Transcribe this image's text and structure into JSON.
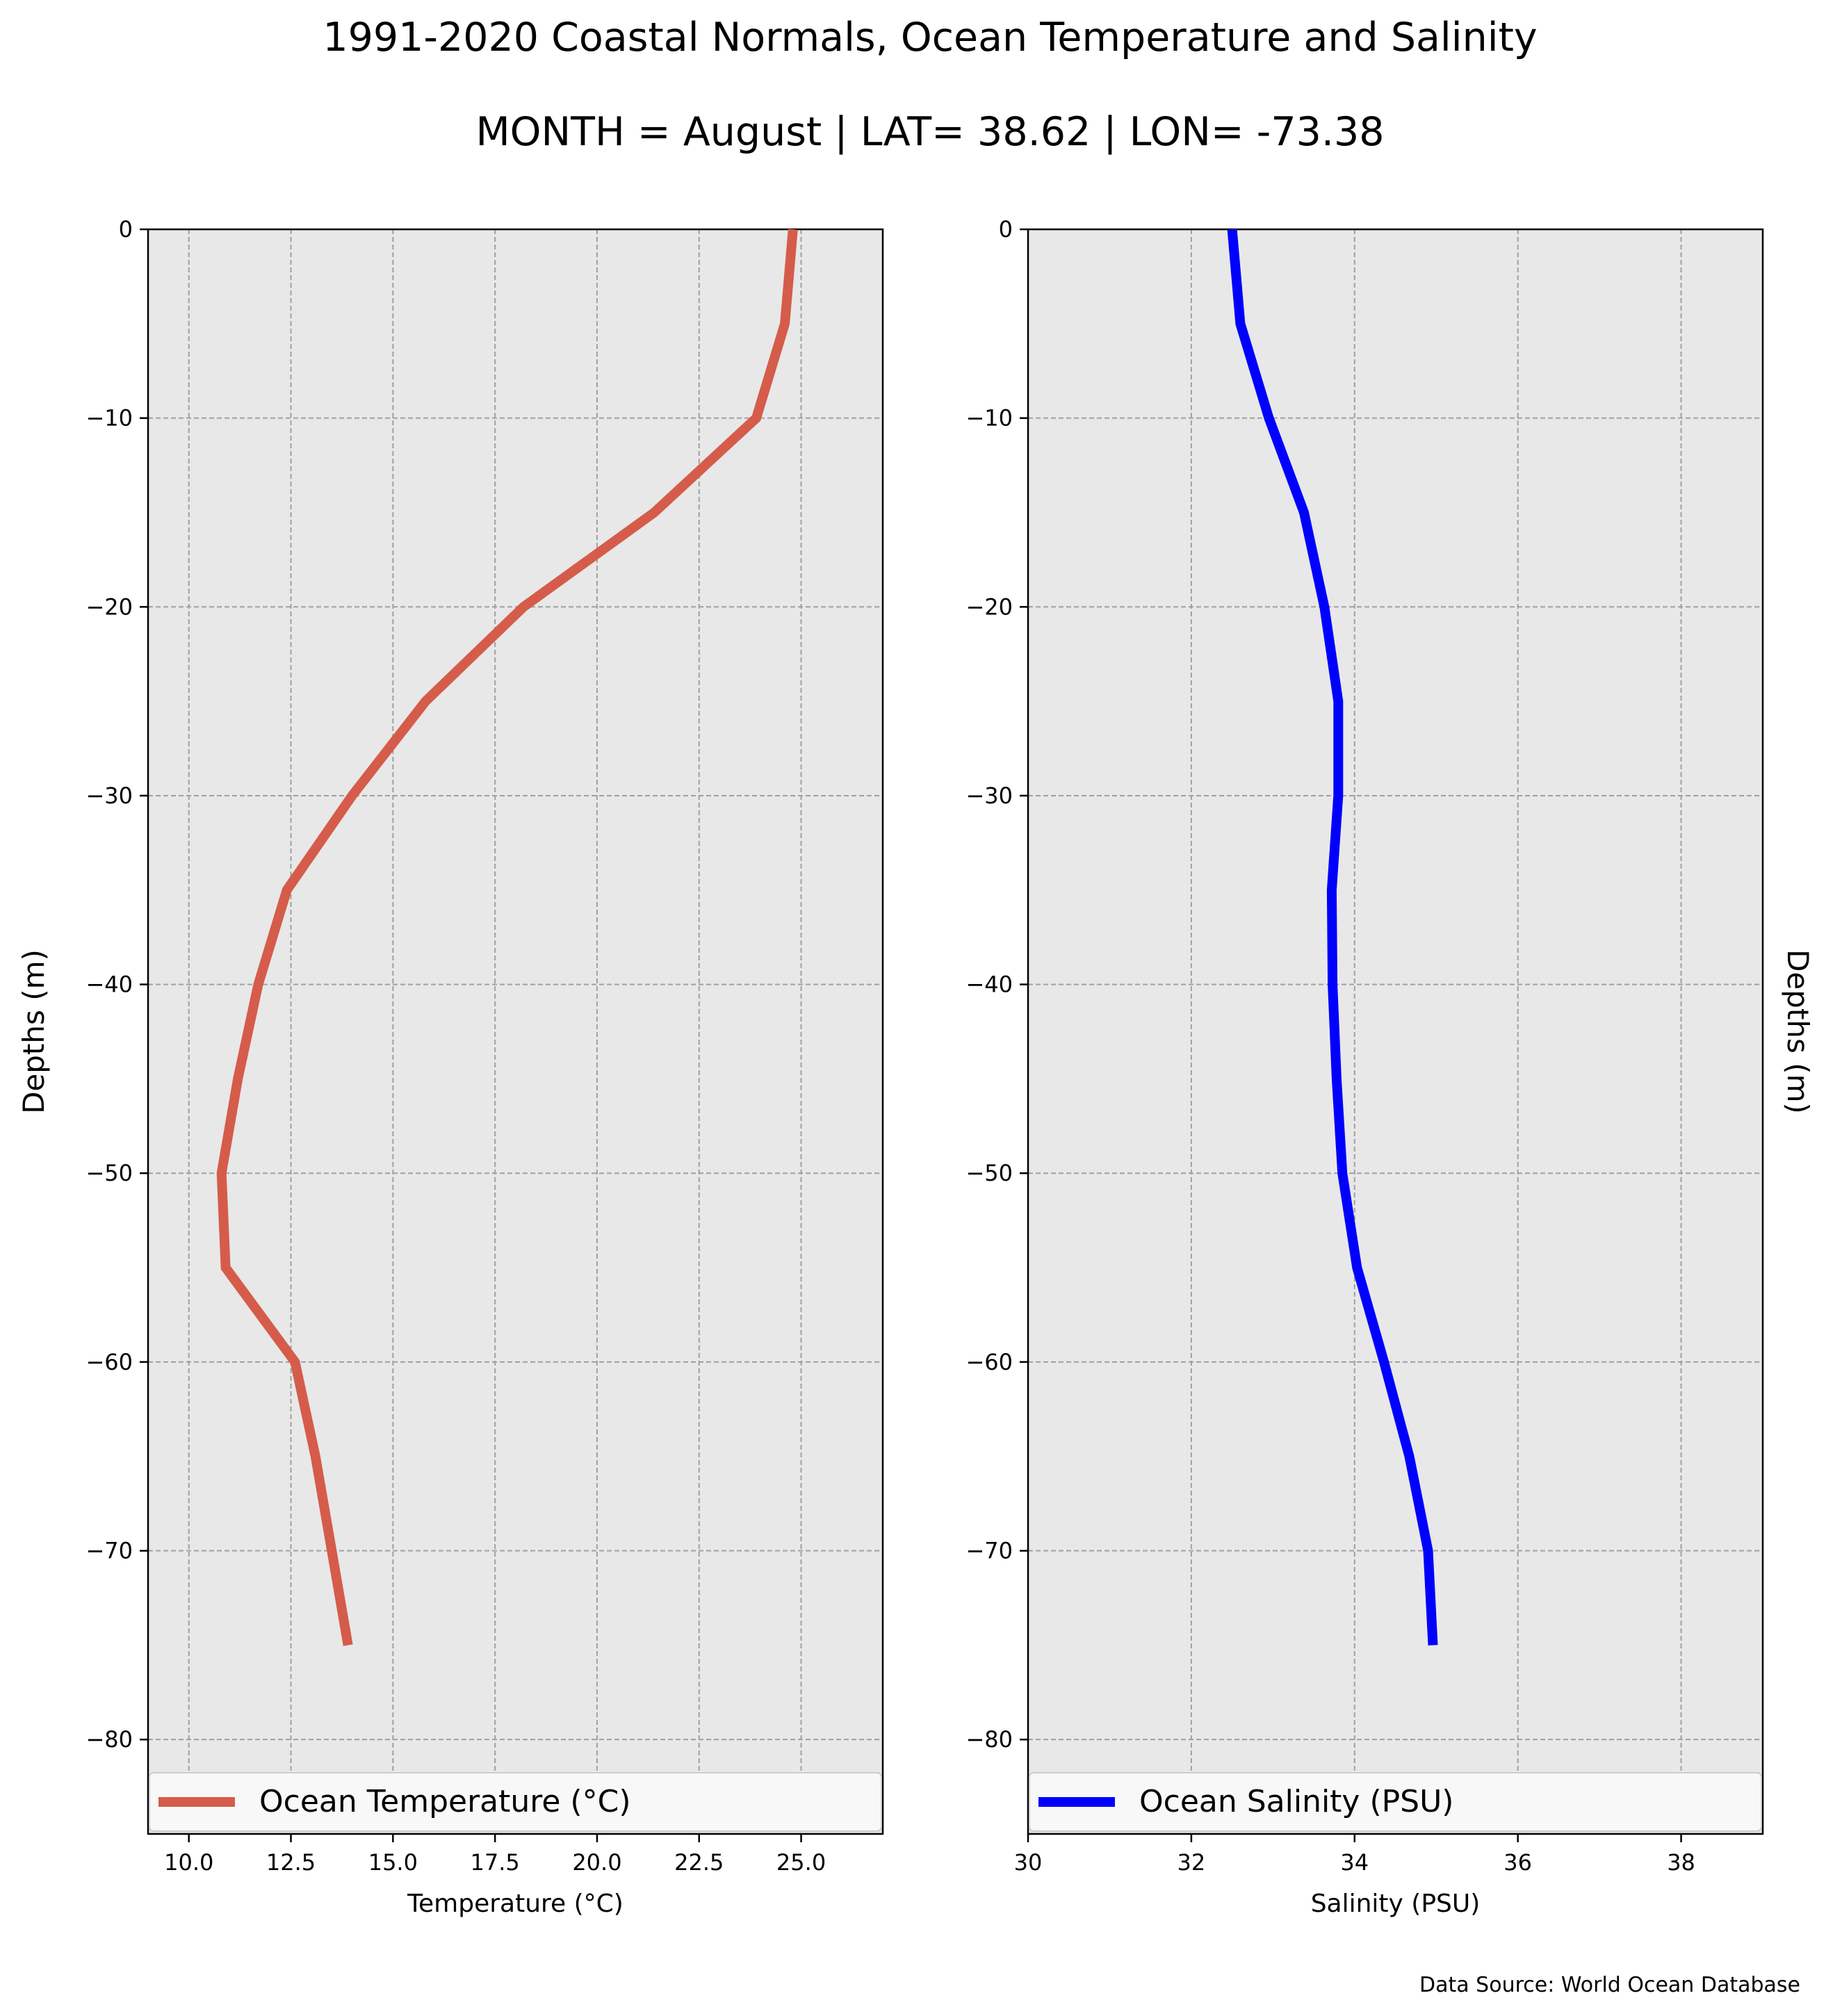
{
  "title": "1991-2020 Coastal Normals, Ocean Temperature and Salinity",
  "subtitle": "MONTH = August | LAT= 38.62 | LON= -73.38",
  "source": "Data Source: World Ocean Database",
  "chart_data": [
    {
      "type": "line",
      "orientation": "vertical-profile",
      "xlabel": "Temperature (°C)",
      "ylabel": "Depths (m)",
      "ylabel_side": "left",
      "xlim": [
        9,
        27
      ],
      "ylim": [
        -85,
        0
      ],
      "xticks": [
        "10.0",
        "12.5",
        "15.0",
        "17.5",
        "20.0",
        "22.5",
        "25.0"
      ],
      "xtick_values": [
        10,
        12.5,
        15,
        17.5,
        20,
        22.5,
        25
      ],
      "yticks": [
        "0",
        "−10",
        "−20",
        "−30",
        "−40",
        "−50",
        "−60",
        "−70",
        "−80"
      ],
      "ytick_values": [
        0,
        -10,
        -20,
        -30,
        -40,
        -50,
        -60,
        -70,
        -80
      ],
      "grid": true,
      "legend_position": "bottom",
      "color": "#d55c4b",
      "series": [
        {
          "name": "Ocean Temperature (°C)",
          "x": [
            24.8,
            24.6,
            23.9,
            21.4,
            18.2,
            15.8,
            14.0,
            12.4,
            11.7,
            11.2,
            10.8,
            10.9,
            12.6,
            13.1,
            13.5,
            13.9
          ],
          "y": [
            0,
            -5,
            -10,
            -15,
            -20,
            -25,
            -30,
            -35,
            -40,
            -45,
            -50,
            -55,
            -60,
            -65,
            -70,
            -75
          ]
        }
      ]
    },
    {
      "type": "line",
      "orientation": "vertical-profile",
      "xlabel": "Salinity (PSU)",
      "ylabel": "Depths (m)",
      "ylabel_side": "right",
      "xlim": [
        30,
        39
      ],
      "ylim": [
        -85,
        0
      ],
      "xticks": [
        "30",
        "32",
        "34",
        "36",
        "38"
      ],
      "xtick_values": [
        30,
        32,
        34,
        36,
        38
      ],
      "yticks": [
        "0",
        "−10",
        "−20",
        "−30",
        "−40",
        "−50",
        "−60",
        "−70",
        "−80"
      ],
      "ytick_values": [
        0,
        -10,
        -20,
        -30,
        -40,
        -50,
        -60,
        -70,
        -80
      ],
      "grid": true,
      "legend_position": "bottom",
      "color": "#0000ff",
      "series": [
        {
          "name": "Ocean Salinity (PSU)",
          "x": [
            32.5,
            32.6,
            32.95,
            33.38,
            33.63,
            33.8,
            33.8,
            33.72,
            33.73,
            33.78,
            33.85,
            34.03,
            34.36,
            34.67,
            34.9,
            34.96
          ],
          "y": [
            0,
            -5,
            -10,
            -15,
            -20,
            -25,
            -30,
            -35,
            -40,
            -45,
            -50,
            -55,
            -60,
            -65,
            -70,
            -75
          ]
        }
      ]
    }
  ]
}
